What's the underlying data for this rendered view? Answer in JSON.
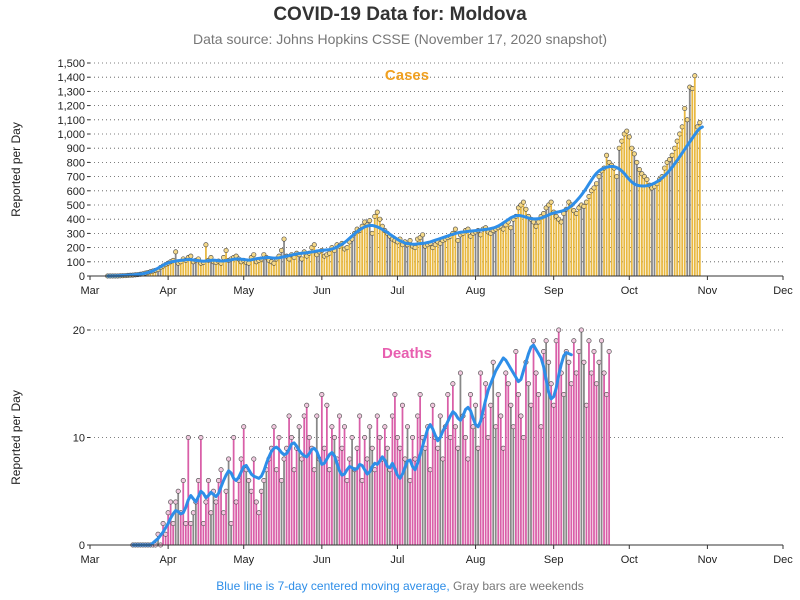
{
  "title": "COVID-19 Data for: Moldova",
  "subtitle": "Data source: Johns Hopkins CSSE (November 17, 2020 snapshot)",
  "footnote": {
    "blue": "Blue line is 7-day centered moving average,",
    "gray": "Gray bars are weekends"
  },
  "colors": {
    "cases_bar": "#e8b840",
    "deaths_bar": "#d95fa8",
    "weekend_bar": "#888888",
    "moving_avg": "#2e8ee8",
    "cases_label": "#f0a020",
    "deaths_label": "#e85fb0"
  },
  "chart_data": [
    {
      "type": "bar",
      "panel_label": "Cases",
      "ylabel": "Reported per Day",
      "xlabel": "",
      "ylim": [
        0,
        1500
      ],
      "yticks": [
        0,
        100,
        200,
        300,
        400,
        500,
        600,
        700,
        800,
        900,
        1000,
        1100,
        1200,
        1300,
        1400,
        1500
      ],
      "ytick_labels": [
        "0",
        "100",
        "200",
        "300",
        "400",
        "500",
        "600",
        "700",
        "800",
        "900",
        "1,000",
        "1,100",
        "1,200",
        "1,300",
        "1,400",
        "1,500"
      ],
      "x_ticks": [
        "Mar",
        "Apr",
        "May",
        "Jun",
        "Jul",
        "Aug",
        "Sep",
        "Oct",
        "Nov",
        "Dec"
      ],
      "x_start": "2020-03-01",
      "x_end": "2020-12-01",
      "grid": true,
      "series": [
        {
          "name": "",
          "x_start": "2020-03-08",
          "values": [
            0,
            0,
            0,
            0,
            0,
            1,
            2,
            3,
            4,
            5,
            6,
            8,
            10,
            12,
            15,
            20,
            25,
            30,
            35,
            40,
            45,
            60,
            70,
            80,
            90,
            100,
            110,
            170,
            90,
            100,
            120,
            110,
            130,
            140,
            100,
            110,
            120,
            90,
            95,
            220,
            110,
            130,
            100,
            95,
            105,
            90,
            130,
            180,
            110,
            120,
            130,
            140,
            120,
            100,
            110,
            95,
            90,
            130,
            150,
            100,
            110,
            120,
            150,
            130,
            110,
            100,
            90,
            120,
            140,
            180,
            260,
            140,
            120,
            150,
            130,
            160,
            150,
            120,
            170,
            140,
            160,
            200,
            220,
            150,
            170,
            180,
            140,
            150,
            160,
            200,
            180,
            220,
            210,
            230,
            190,
            200,
            240,
            260,
            300,
            330,
            320,
            350,
            380,
            360,
            390,
            300,
            420,
            450,
            400,
            350,
            320,
            300,
            280,
            260,
            250,
            240,
            260,
            220,
            240,
            220,
            250,
            210,
            200,
            260,
            270,
            290,
            210,
            220,
            230,
            200,
            220,
            240,
            230,
            250,
            260,
            270,
            280,
            300,
            330,
            250,
            290,
            300,
            320,
            330,
            280,
            300,
            310,
            320,
            290,
            330,
            340,
            310,
            300,
            320,
            330,
            340,
            350,
            330,
            360,
            380,
            340,
            400,
            420,
            480,
            500,
            520,
            470,
            420,
            400,
            380,
            350,
            380,
            420,
            440,
            480,
            500,
            520,
            450,
            420,
            400,
            380,
            440,
            470,
            520,
            500,
            460,
            440,
            480,
            500,
            490,
            520,
            560,
            600,
            620,
            650,
            700,
            740,
            760,
            850,
            800,
            780,
            760,
            700,
            900,
            950,
            1000,
            1020,
            980,
            900,
            860,
            800,
            750,
            720,
            700,
            680,
            640,
            620,
            630,
            650,
            680,
            700,
            760,
            800,
            820,
            850,
            900,
            950,
            1000,
            1050,
            1180,
            1100,
            1330,
            1320,
            1410,
            1050,
            1080
          ]
        },
        {
          "name": "7-day centered moving average",
          "x_start": "2020-03-08",
          "values": [
            0,
            0,
            1,
            1,
            2,
            3,
            4,
            5,
            6,
            7,
            8,
            10,
            12,
            14,
            16,
            20,
            25,
            30,
            36,
            45,
            55,
            65,
            75,
            85,
            92,
            98,
            102,
            105,
            108,
            110,
            112,
            114,
            116,
            115,
            113,
            110,
            108,
            106,
            104,
            106,
            108,
            110,
            112,
            110,
            108,
            106,
            106,
            108,
            110,
            114,
            118,
            120,
            120,
            118,
            116,
            114,
            112,
            114,
            118,
            122,
            124,
            126,
            128,
            130,
            130,
            128,
            126,
            126,
            128,
            132,
            136,
            140,
            144,
            148,
            152,
            156,
            158,
            160,
            162,
            164,
            166,
            170,
            172,
            176,
            178,
            180,
            182,
            184,
            186,
            190,
            196,
            204,
            214,
            224,
            236,
            250,
            266,
            282,
            298,
            312,
            324,
            336,
            346,
            352,
            356,
            356,
            352,
            346,
            338,
            328,
            318,
            306,
            294,
            282,
            270,
            258,
            248,
            240,
            232,
            228,
            226,
            224,
            224,
            226,
            228,
            230,
            232,
            236,
            240,
            246,
            252,
            258,
            264,
            270,
            276,
            282,
            288,
            294,
            300,
            304,
            308,
            310,
            312,
            314,
            316,
            318,
            320,
            322,
            324,
            326,
            328,
            330,
            334,
            338,
            344,
            352,
            362,
            374,
            386,
            398,
            410,
            418,
            424,
            426,
            424,
            420,
            414,
            408,
            404,
            402,
            402,
            404,
            408,
            414,
            422,
            430,
            438,
            444,
            448,
            452,
            456,
            462,
            470,
            480,
            494,
            510,
            528,
            548,
            570,
            594,
            620,
            648,
            676,
            702,
            724,
            740,
            752,
            760,
            766,
            770,
            772,
            770,
            764,
            754,
            740,
            722,
            700,
            680,
            662,
            648,
            640,
            636,
            634,
            634,
            636,
            640,
            646,
            654,
            664,
            676,
            690,
            706,
            724,
            744,
            766,
            790,
            814,
            840,
            866,
            892,
            918,
            944,
            970,
            996,
            1020,
            1040,
            1050
          ]
        }
      ]
    },
    {
      "type": "bar",
      "panel_label": "Deaths",
      "ylabel": "Reported per Day",
      "xlabel": "",
      "ylim": [
        0,
        20
      ],
      "yticks": [
        0,
        10,
        20
      ],
      "ytick_labels": [
        "0",
        "10",
        "20"
      ],
      "x_ticks": [
        "Mar",
        "Apr",
        "May",
        "Jun",
        "Jul",
        "Aug",
        "Sep",
        "Oct",
        "Nov",
        "Dec"
      ],
      "x_start": "2020-03-01",
      "x_end": "2020-12-01",
      "grid": true,
      "series": [
        {
          "name": "",
          "x_start": "2020-03-18",
          "values": [
            0,
            0,
            0,
            0,
            0,
            0,
            0,
            0,
            0,
            0,
            1,
            0,
            2,
            1,
            3,
            4,
            2,
            4,
            5,
            3,
            6,
            2,
            10,
            2,
            3,
            4,
            6,
            10,
            2,
            4,
            6,
            3,
            5,
            4,
            6,
            7,
            3,
            5,
            8,
            2,
            10,
            4,
            6,
            8,
            11,
            7,
            6,
            5,
            8,
            4,
            3,
            5,
            6,
            7,
            8,
            9,
            11,
            7,
            10,
            6,
            8,
            9,
            12,
            10,
            7,
            9,
            11,
            8,
            12,
            13,
            10,
            9,
            7,
            12,
            8,
            14,
            9,
            13,
            7,
            11,
            10,
            8,
            12,
            9,
            11,
            6,
            8,
            10,
            7,
            9,
            12,
            6,
            10,
            8,
            11,
            9,
            7,
            12,
            10,
            8,
            11,
            9,
            7,
            12,
            14,
            10,
            9,
            13,
            8,
            11,
            6,
            10,
            8,
            12,
            14,
            10,
            9,
            11,
            7,
            13,
            10,
            9,
            12,
            8,
            11,
            14,
            10,
            15,
            11,
            9,
            16,
            12,
            10,
            8,
            14,
            11,
            13,
            9,
            16,
            12,
            15,
            10,
            13,
            17,
            11,
            14,
            12,
            9,
            16,
            15,
            13,
            11,
            18,
            14,
            12,
            10,
            17,
            15,
            13,
            19,
            16,
            14,
            11,
            18,
            19,
            17,
            15,
            13,
            19,
            20,
            16,
            14,
            18,
            17,
            15,
            19,
            16,
            18,
            20,
            17,
            13,
            19,
            16,
            18,
            15,
            17,
            19,
            16,
            14,
            18
          ]
        },
        {
          "name": "7-day centered moving average",
          "x_start": "2020-03-18",
          "values": [
            0,
            0,
            0,
            0,
            0,
            0,
            0,
            0,
            0.2,
            0.4,
            0.6,
            0.9,
            1.2,
            1.6,
            2.0,
            2.5,
            2.9,
            3.2,
            3.1,
            2.9,
            3.0,
            3.5,
            4.2,
            4.6,
            4.3,
            4.0,
            4.5,
            5.0,
            4.8,
            4.4,
            4.6,
            4.9,
            4.7,
            4.5,
            4.8,
            5.4,
            6.0,
            6.5,
            6.9,
            6.7,
            6.2,
            6.0,
            6.3,
            6.8,
            7.3,
            7.4,
            7.0,
            6.6,
            6.4,
            6.3,
            6.2,
            6.4,
            6.9,
            7.6,
            8.2,
            8.7,
            9.0,
            9.1,
            8.9,
            8.6,
            8.4,
            8.5,
            8.9,
            9.4,
            9.5,
            9.2,
            8.8,
            8.5,
            8.3,
            8.2,
            8.5,
            8.9,
            9.0,
            8.7,
            8.1,
            7.5,
            7.6,
            8.0,
            8.4,
            8.6,
            8.3,
            7.6,
            6.9,
            6.5,
            6.6,
            7.0,
            7.3,
            7.2,
            7.0,
            7.1,
            7.5,
            7.4,
            7.0,
            6.6,
            6.8,
            7.3,
            7.6,
            7.5,
            7.8,
            8.2,
            7.9,
            7.3,
            7.2,
            7.6,
            7.1,
            6.5,
            6.2,
            6.6,
            7.2,
            7.8,
            7.9,
            7.3,
            7.0,
            7.6,
            8.4,
            9.2,
            10.0,
            10.8,
            11.2,
            10.8,
            10.2,
            9.7,
            10.0,
            10.6,
            11.0,
            11.5,
            12.0,
            12.4,
            12.2,
            11.8,
            11.6,
            12.0,
            12.6,
            12.8,
            12.5,
            11.8,
            11.2,
            11.0,
            11.5,
            12.5,
            13.5,
            14.4,
            15.0,
            15.6,
            16.2,
            16.6,
            17.0,
            17.4,
            17.2,
            16.8,
            16.4,
            16.0,
            15.6,
            15.2,
            15.4,
            16.2,
            17.0,
            17.8,
            18.4,
            18.6,
            18.2,
            17.8,
            17.4,
            16.6,
            15.4,
            14.2,
            13.6,
            13.8,
            14.6,
            15.8,
            16.8,
            17.6,
            17.9,
            17.8,
            17.7
          ]
        }
      ]
    }
  ]
}
